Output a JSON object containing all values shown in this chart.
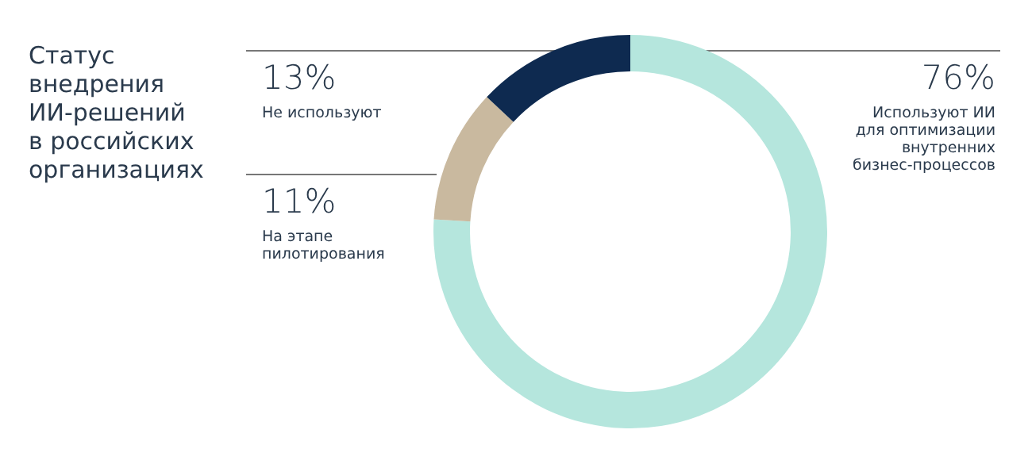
{
  "chart_data": {
    "type": "donut",
    "title": "Статус\nвнедрения\nИИ-решений\nв российских\nорганизациях",
    "categories": [
      "Используют ИИ\nдля оптимизации\nвнутренних\nбизнес-процессов",
      "На этапе\nпилотирования",
      "Не используют"
    ],
    "values": [
      76,
      11,
      13
    ],
    "colors": [
      "#b5e6dd",
      "#c9b99f",
      "#0e2a50"
    ],
    "value_labels": [
      "76%",
      "11%",
      "13%"
    ]
  }
}
